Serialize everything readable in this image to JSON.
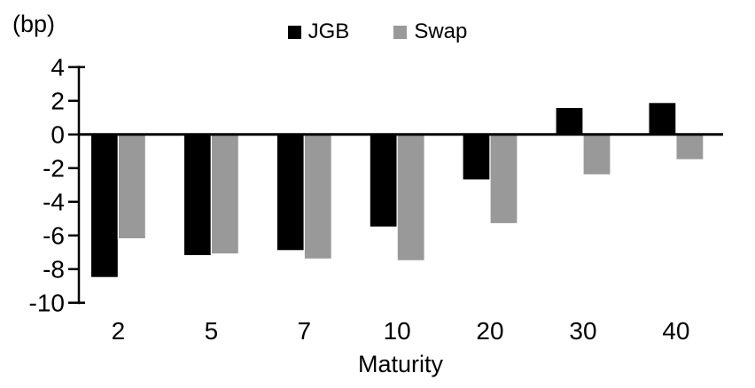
{
  "chart_data": {
    "type": "bar",
    "title": "",
    "y_axis_unit": "(bp)",
    "xlabel": "Maturity",
    "categories": [
      "2",
      "5",
      "7",
      "10",
      "20",
      "30",
      "40"
    ],
    "series": [
      {
        "name": "JGB",
        "color": "#000000",
        "values": [
          -8.5,
          -7.2,
          -6.9,
          -5.5,
          -2.7,
          1.6,
          1.9
        ]
      },
      {
        "name": "Swap",
        "color": "#999999",
        "values": [
          -6.2,
          -7.1,
          -7.4,
          -7.5,
          -5.3,
          -2.4,
          -1.5
        ]
      }
    ],
    "y_ticks": [
      4,
      2,
      0,
      -2,
      -4,
      -6,
      -8,
      -10
    ],
    "ylim": [
      -10,
      4
    ],
    "grid": false,
    "legend_position": "top-center",
    "background": "#ffffff"
  }
}
